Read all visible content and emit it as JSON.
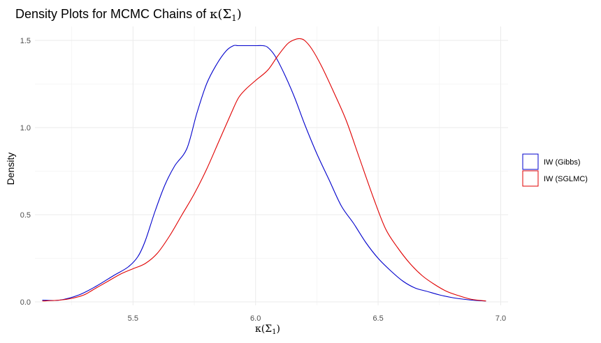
{
  "chart_data": {
    "type": "line",
    "title": "Density Plots for MCMC Chains of ",
    "title_math": "κ(Σ",
    "title_math_sub": "1",
    "title_math_close": ")",
    "xlabel": "κ(Σ",
    "xlabel_sub": "1",
    "xlabel_close": ")",
    "ylabel": "Density",
    "xlim": [
      5.1,
      7.03
    ],
    "ylim": [
      -0.02,
      1.58
    ],
    "x_ticks": [
      5.5,
      6.0,
      6.5,
      7.0
    ],
    "x_tick_labels": [
      "5.5",
      "6.0",
      "6.5",
      "7.0"
    ],
    "y_ticks": [
      0.0,
      0.5,
      1.0,
      1.5
    ],
    "y_tick_labels": [
      "0.0",
      "0.5",
      "1.0",
      "1.5"
    ],
    "grid": true,
    "legend_position": "right",
    "series": [
      {
        "name": "IW (Gibbs)",
        "color": "#0000cc",
        "x": [
          5.13,
          5.2,
          5.28,
          5.35,
          5.42,
          5.48,
          5.52,
          5.55,
          5.59,
          5.63,
          5.67,
          5.72,
          5.76,
          5.8,
          5.84,
          5.88,
          5.91,
          5.93,
          5.97,
          6.0,
          6.03,
          6.05,
          6.08,
          6.12,
          6.16,
          6.2,
          6.25,
          6.3,
          6.35,
          6.4,
          6.45,
          6.5,
          6.55,
          6.6,
          6.65,
          6.7,
          6.75,
          6.8,
          6.85,
          6.9,
          6.94
        ],
        "y": [
          0.01,
          0.01,
          0.04,
          0.09,
          0.15,
          0.2,
          0.26,
          0.35,
          0.52,
          0.67,
          0.78,
          0.88,
          1.08,
          1.25,
          1.36,
          1.44,
          1.47,
          1.47,
          1.47,
          1.47,
          1.47,
          1.46,
          1.41,
          1.3,
          1.17,
          1.02,
          0.85,
          0.7,
          0.55,
          0.45,
          0.34,
          0.25,
          0.18,
          0.12,
          0.08,
          0.06,
          0.04,
          0.025,
          0.015,
          0.008,
          0.005
        ]
      },
      {
        "name": "IW (SGLMC)",
        "color": "#e00000",
        "x": [
          5.13,
          5.2,
          5.25,
          5.3,
          5.35,
          5.4,
          5.45,
          5.5,
          5.55,
          5.6,
          5.65,
          5.7,
          5.75,
          5.8,
          5.85,
          5.9,
          5.93,
          5.96,
          6.0,
          6.05,
          6.09,
          6.13,
          6.16,
          6.18,
          6.2,
          6.23,
          6.27,
          6.32,
          6.37,
          6.42,
          6.48,
          6.53,
          6.58,
          6.63,
          6.68,
          6.73,
          6.78,
          6.83,
          6.88,
          6.94
        ],
        "y": [
          0.005,
          0.01,
          0.02,
          0.04,
          0.08,
          0.12,
          0.16,
          0.19,
          0.22,
          0.28,
          0.38,
          0.5,
          0.62,
          0.76,
          0.92,
          1.08,
          1.17,
          1.22,
          1.27,
          1.33,
          1.41,
          1.48,
          1.505,
          1.51,
          1.5,
          1.45,
          1.35,
          1.2,
          1.04,
          0.84,
          0.6,
          0.42,
          0.31,
          0.22,
          0.15,
          0.1,
          0.06,
          0.035,
          0.015,
          0.005
        ]
      }
    ]
  }
}
